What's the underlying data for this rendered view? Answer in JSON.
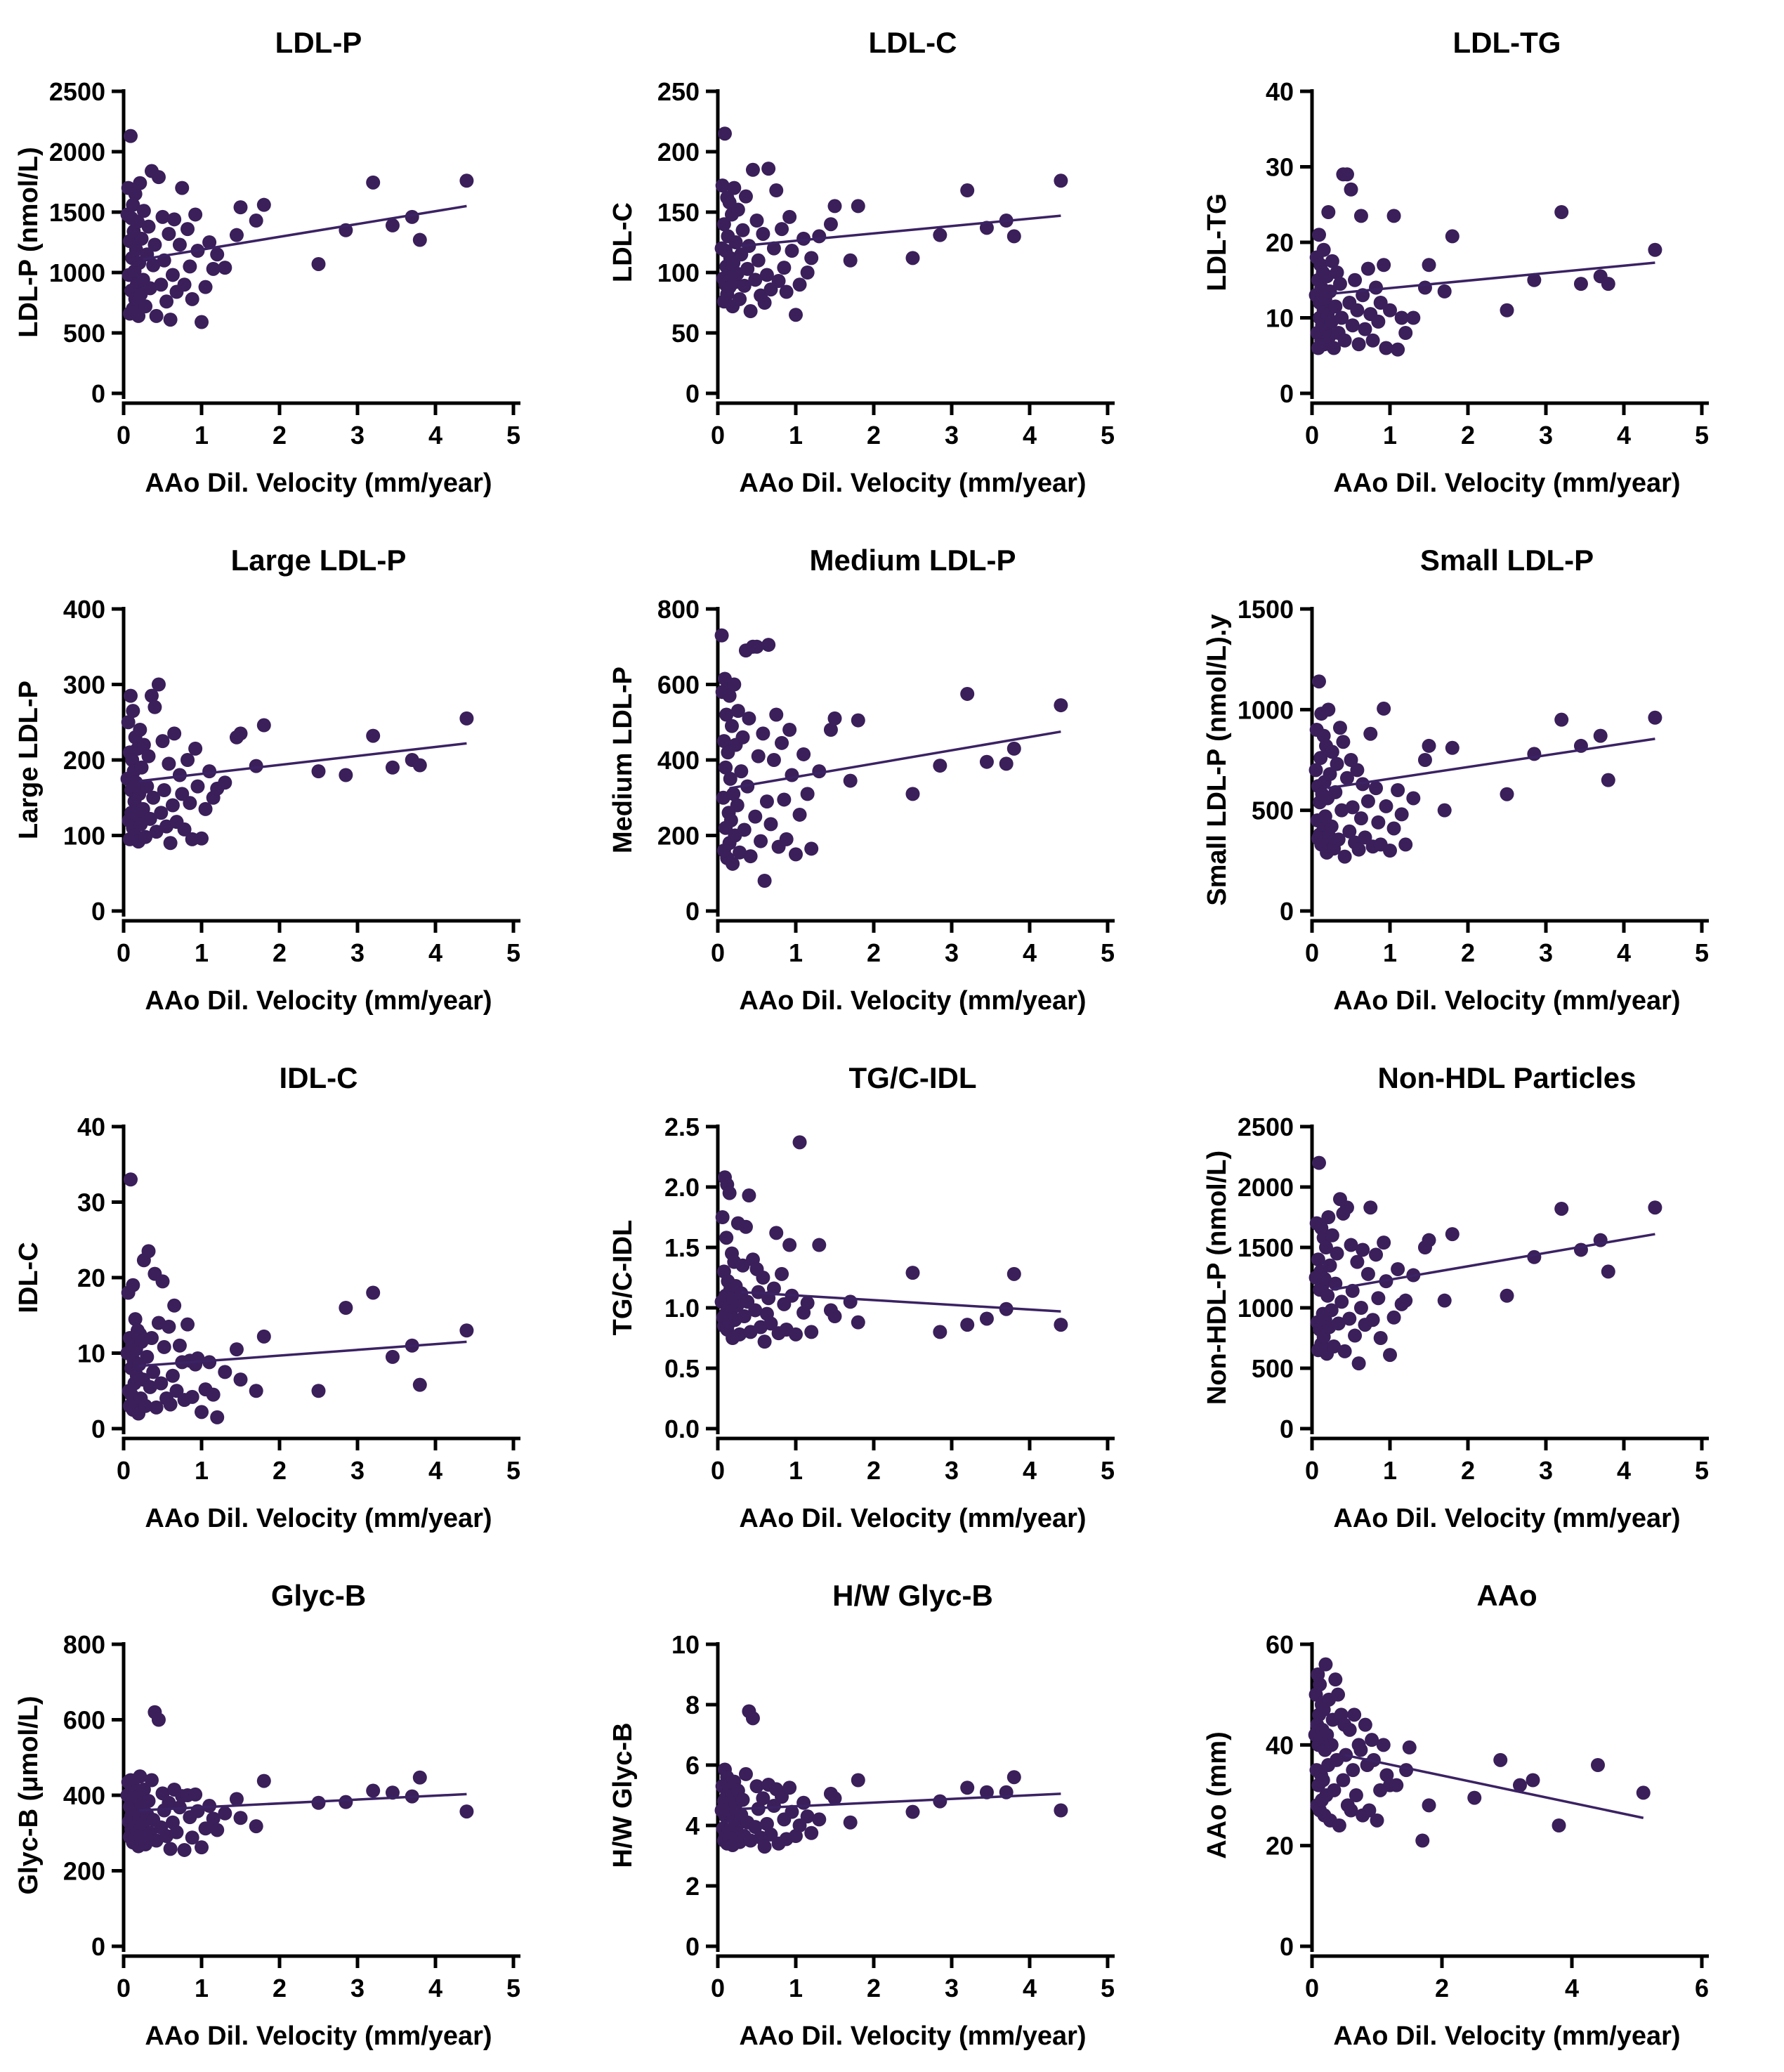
{
  "figure": {
    "background": "#ffffff",
    "dot_color": "#3a1f5a",
    "trend_color": "#3b2263",
    "axis_color": "#000000",
    "xlabel": "AAo Dil. Velocity (mm/year)"
  },
  "x_shared": [
    0.05,
    0.06,
    0.07,
    0.08,
    0.08,
    0.09,
    0.1,
    0.1,
    0.11,
    0.12,
    0.12,
    0.13,
    0.14,
    0.15,
    0.15,
    0.16,
    0.17,
    0.18,
    0.19,
    0.2,
    0.21,
    0.22,
    0.23,
    0.25,
    0.26,
    0.28,
    0.3,
    0.32,
    0.34,
    0.36,
    0.38,
    0.4,
    0.42,
    0.45,
    0.48,
    0.5,
    0.52,
    0.55,
    0.58,
    0.6,
    0.63,
    0.65,
    0.68,
    0.72,
    0.75,
    0.78,
    0.82,
    0.85,
    0.88,
    0.92,
    0.95,
    1.0,
    1.05,
    1.1,
    1.15,
    1.2,
    1.3,
    1.45,
    1.5,
    1.7,
    1.8,
    2.5,
    2.85,
    3.2,
    3.45,
    3.7,
    3.8,
    4.4
  ],
  "chart_data": [
    {
      "type": "scatter",
      "slug": "ldl-p",
      "title": "LDL-P",
      "ylabel": "LDL-P (nmol/L)",
      "xlabel": "AAo Dil. Velocity (mm/year)",
      "xlim": [
        0,
        5
      ],
      "ylim": [
        0,
        2500
      ],
      "xticks": [
        "0",
        "1",
        "2",
        "3",
        "4",
        "5"
      ],
      "yticks": [
        "0",
        "500",
        "1000",
        "1500",
        "2000",
        "2500"
      ],
      "y": [
        1480,
        1700,
        980,
        660,
        1260,
        2130,
        1450,
        850,
        1120,
        1560,
        700,
        1340,
        1010,
        1650,
        780,
        1190,
        900,
        1420,
        640,
        1080,
        1740,
        820,
        1280,
        940,
        1510,
        720,
        1150,
        1380,
        870,
        1840,
        1060,
        1230,
        640,
        1790,
        900,
        1460,
        1100,
        760,
        1320,
        610,
        980,
        1440,
        840,
        1230,
        1700,
        900,
        1360,
        1050,
        780,
        1480,
        1180,
        590,
        880,
        1250,
        1030,
        1150,
        1040,
        1310,
        1540,
        1430,
        1560,
        1070,
        1350,
        1745,
        1390,
        1460,
        1270,
        1760
      ],
      "trend": {
        "x1": 0.25,
        "y1": 1110,
        "x2": 4.4,
        "y2": 1550
      }
    },
    {
      "type": "scatter",
      "slug": "ldl-c",
      "title": "LDL-C",
      "ylabel": "LDL-C",
      "xlabel": "AAo Dil. Velocity (mm/year)",
      "xlim": [
        0,
        5
      ],
      "ylim": [
        0,
        250
      ],
      "xticks": [
        "0",
        "1",
        "2",
        "3",
        "4",
        "5"
      ],
      "yticks": [
        "0",
        "50",
        "100",
        "150",
        "200",
        "250"
      ],
      "y": [
        120,
        172,
        95,
        76,
        140,
        215,
        118,
        90,
        105,
        162,
        82,
        130,
        100,
        158,
        88,
        112,
        96,
        148,
        72,
        108,
        170,
        92,
        125,
        99,
        152,
        78,
        115,
        135,
        89,
        163,
        103,
        122,
        68,
        185,
        94,
        143,
        110,
        81,
        132,
        75,
        98,
        186,
        86,
        120,
        168,
        93,
        136,
        104,
        84,
        146,
        118,
        65,
        90,
        128,
        100,
        112,
        130,
        140,
        155,
        110,
        155,
        112,
        131,
        168,
        137,
        143,
        130,
        176
      ],
      "trend": {
        "x1": 0.3,
        "y1": 122,
        "x2": 4.4,
        "y2": 147
      }
    },
    {
      "type": "scatter",
      "slug": "ldl-tg",
      "title": "LDL-TG",
      "ylabel": "LDL-TG",
      "xlabel": "AAo Dil. Velocity (mm/year)",
      "xlim": [
        0,
        5
      ],
      "ylim": [
        0,
        40
      ],
      "xticks": [
        "0",
        "1",
        "2",
        "3",
        "4",
        "5"
      ],
      "yticks": [
        "0",
        "10",
        "20",
        "30",
        "40"
      ],
      "y": [
        13,
        18,
        8,
        6,
        15,
        21,
        10,
        12,
        17,
        7,
        14,
        9,
        16,
        11,
        19,
        6.5,
        12.5,
        8.5,
        15.5,
        10.5,
        24,
        7.5,
        13.5,
        9.5,
        17.5,
        6,
        11.5,
        16,
        8,
        14.5,
        10,
        29,
        7,
        29,
        12,
        27,
        9,
        15,
        11,
        6.5,
        23.5,
        13,
        8.5,
        16.5,
        10.5,
        7,
        14,
        9.5,
        12,
        17,
        6,
        11,
        23.5,
        5.8,
        10,
        8,
        10,
        14,
        17,
        13.5,
        20.8,
        11,
        15,
        24,
        14.5,
        15.5,
        14.5,
        19
      ],
      "trend": {
        "x1": 0.25,
        "y1": 13.2,
        "x2": 4.4,
        "y2": 17.3
      }
    },
    {
      "type": "scatter",
      "slug": "large-ldl-p",
      "title": "Large LDL-P",
      "ylabel": "Large LDL-P",
      "xlabel": "AAo Dil. Velocity (mm/year)",
      "xlim": [
        0,
        5
      ],
      "ylim": [
        0,
        400
      ],
      "xticks": [
        "0",
        "1",
        "2",
        "3",
        "4",
        "5"
      ],
      "yticks": [
        "0",
        "100",
        "200",
        "300",
        "400"
      ],
      "y": [
        175,
        250,
        120,
        95,
        210,
        285,
        160,
        130,
        200,
        265,
        110,
        185,
        145,
        230,
        100,
        170,
        125,
        215,
        92,
        155,
        240,
        115,
        190,
        135,
        220,
        98,
        165,
        205,
        122,
        285,
        150,
        270,
        105,
        300,
        130,
        225,
        160,
        112,
        195,
        90,
        140,
        235,
        118,
        180,
        155,
        108,
        200,
        143,
        95,
        215,
        165,
        96,
        135,
        185,
        150,
        162,
        170,
        230,
        235,
        192,
        246,
        185,
        180,
        232,
        190,
        200,
        193,
        255
      ],
      "trend": {
        "x1": 0.2,
        "y1": 172,
        "x2": 4.4,
        "y2": 222
      }
    },
    {
      "type": "scatter",
      "slug": "medium-ldl-p",
      "title": "Medium LDL-P",
      "ylabel": "Medium LDL-P",
      "xlabel": "AAo Dil. Velocity (mm/year)",
      "xlim": [
        0,
        5
      ],
      "ylim": [
        0,
        800
      ],
      "xticks": [
        "0",
        "1",
        "2",
        "3",
        "4",
        "5"
      ],
      "yticks": [
        "0",
        "200",
        "400",
        "600",
        "800"
      ],
      "y": [
        730,
        580,
        300,
        160,
        450,
        615,
        380,
        220,
        520,
        590,
        140,
        420,
        260,
        570,
        180,
        350,
        240,
        490,
        125,
        310,
        600,
        200,
        440,
        280,
        530,
        155,
        370,
        460,
        215,
        690,
        330,
        510,
        145,
        700,
        250,
        700,
        410,
        185,
        470,
        80,
        290,
        705,
        230,
        400,
        520,
        170,
        445,
        295,
        190,
        480,
        360,
        150,
        255,
        415,
        310,
        165,
        370,
        480,
        510,
        345,
        505,
        310,
        385,
        575,
        395,
        390,
        430,
        545
      ],
      "trend": {
        "x1": 0.15,
        "y1": 325,
        "x2": 4.4,
        "y2": 475
      }
    },
    {
      "type": "scatter",
      "slug": "small-ldl-p",
      "title": "Small LDL-P",
      "ylabel": "Small LDL-P (nmol/L).y",
      "xlabel": "AAo Dil. Velocity (mm/year)",
      "xlim": [
        0,
        5
      ],
      "ylim": [
        0,
        1500
      ],
      "xticks": [
        "0",
        "1",
        "2",
        "3",
        "4",
        "5"
      ],
      "yticks": [
        "0",
        "500",
        "1000",
        "1500"
      ],
      "y": [
        700,
        900,
        450,
        360,
        620,
        1140,
        540,
        380,
        760,
        980,
        330,
        580,
        430,
        870,
        350,
        640,
        470,
        820,
        290,
        560,
        1000,
        370,
        680,
        420,
        790,
        310,
        590,
        730,
        355,
        910,
        500,
        840,
        270,
        660,
        395,
        750,
        515,
        340,
        700,
        305,
        460,
        630,
        365,
        545,
        880,
        320,
        610,
        440,
        330,
        1005,
        520,
        300,
        410,
        600,
        480,
        330,
        560,
        750,
        820,
        500,
        810,
        580,
        780,
        950,
        820,
        870,
        650,
        960
      ],
      "trend": {
        "x1": 0.2,
        "y1": 610,
        "x2": 4.4,
        "y2": 855
      }
    },
    {
      "type": "scatter",
      "slug": "idl-c",
      "title": "IDL-C",
      "ylabel": "IDL-C",
      "xlabel": "AAo Dil. Velocity (mm/year)",
      "xlim": [
        0,
        5
      ],
      "ylim": [
        0,
        40
      ],
      "xticks": [
        "0",
        "1",
        "2",
        "3",
        "4",
        "5"
      ],
      "yticks": [
        "0",
        "10",
        "20",
        "30",
        "40"
      ],
      "y": [
        10,
        18,
        5,
        3,
        12,
        33,
        8,
        4.5,
        11,
        19,
        2.5,
        9,
        6,
        14.5,
        3.5,
        10.5,
        7,
        13,
        2,
        8.5,
        12.5,
        4,
        11.5,
        6.5,
        22.3,
        3,
        9.5,
        23.5,
        5.5,
        12,
        7.5,
        20.5,
        2.8,
        14,
        6,
        19.5,
        10.8,
        4,
        13.5,
        3.2,
        7,
        16.3,
        5,
        11,
        8.8,
        3.8,
        13.8,
        9,
        4.2,
        8.5,
        9.3,
        2.2,
        5.2,
        8.8,
        4.5,
        1.5,
        7.5,
        10.5,
        6.5,
        5,
        12.2,
        5,
        16,
        18,
        9.5,
        11,
        5.8,
        13
      ],
      "trend": {
        "x1": 0.2,
        "y1": 8.3,
        "x2": 4.4,
        "y2": 11.5
      }
    },
    {
      "type": "scatter",
      "slug": "tg-c-idl",
      "title": "TG/C-IDL",
      "ylabel": "TG/C-IDL",
      "xlabel": "AAo Dil. Velocity (mm/year)",
      "xlim": [
        0,
        5
      ],
      "ylim": [
        0,
        2.5
      ],
      "xticks": [
        "0",
        "1",
        "2",
        "3",
        "4",
        "5"
      ],
      "yticks": [
        "0.0",
        "0.5",
        "1.0",
        "1.5",
        "2.0",
        "2.5"
      ],
      "y": [
        1.05,
        1.75,
        0.92,
        0.85,
        1.3,
        2.08,
        1.1,
        0.95,
        1.58,
        2.02,
        0.82,
        1.22,
        1.0,
        1.95,
        0.88,
        1.15,
        0.97,
        1.45,
        0.75,
        1.08,
        1.38,
        0.9,
        1.18,
        1.02,
        1.7,
        0.78,
        1.12,
        1.35,
        0.93,
        1.67,
        1.05,
        1.93,
        0.8,
        1.4,
        0.98,
        1.32,
        1.13,
        0.84,
        1.25,
        0.72,
        0.95,
        1.08,
        0.87,
        1.16,
        1.62,
        0.79,
        1.28,
        1.03,
        0.82,
        1.52,
        1.1,
        0.78,
        2.37,
        0.96,
        1.04,
        0.8,
        1.52,
        0.98,
        0.93,
        1.05,
        0.88,
        1.29,
        0.8,
        0.86,
        0.91,
        0.99,
        1.28,
        0.86
      ],
      "trend": {
        "x1": 0.3,
        "y1": 1.13,
        "x2": 4.4,
        "y2": 0.97
      }
    },
    {
      "type": "scatter",
      "slug": "non-hdl-particles",
      "title": "Non-HDL Particles",
      "ylabel": "Non-HDL-P (nmol/L)",
      "xlabel": "AAo Dil. Velocity (mm/year)",
      "xlim": [
        0,
        5
      ],
      "ylim": [
        0,
        2500
      ],
      "xticks": [
        "0",
        "1",
        "2",
        "3",
        "4",
        "5"
      ],
      "yticks": [
        "0",
        "500",
        "1000",
        "1500",
        "2000",
        "2500"
      ],
      "y": [
        1250,
        1700,
        880,
        650,
        1400,
        2200,
        1150,
        820,
        1300,
        1660,
        700,
        1180,
        950,
        1580,
        760,
        1240,
        900,
        1500,
        620,
        1100,
        1750,
        840,
        1350,
        980,
        1600,
        680,
        1200,
        1450,
        870,
        1900,
        1050,
        1780,
        640,
        1830,
        910,
        1520,
        1140,
        770,
        1380,
        540,
        1000,
        1480,
        860,
        1280,
        1830,
        900,
        1440,
        1080,
        750,
        1540,
        1220,
        610,
        920,
        1320,
        1030,
        1060,
        1270,
        1500,
        1560,
        1060,
        1610,
        1100,
        1420,
        1820,
        1480,
        1560,
        1300,
        1830
      ],
      "trend": {
        "x1": 0.25,
        "y1": 1150,
        "x2": 4.4,
        "y2": 1610
      }
    },
    {
      "type": "scatter",
      "slug": "glyc-b",
      "title": "Glyc-B",
      "ylabel": "Glyc-B (μmol/L)",
      "xlabel": "AAo Dil. Velocity (mm/year)",
      "xlim": [
        0,
        5
      ],
      "ylim": [
        0,
        800
      ],
      "xticks": [
        "0",
        "1",
        "2",
        "3",
        "4",
        "5"
      ],
      "yticks": [
        "0",
        "200",
        "400",
        "600",
        "800"
      ],
      "y": [
        400,
        435,
        330,
        290,
        370,
        440,
        345,
        310,
        390,
        425,
        275,
        355,
        320,
        410,
        285,
        365,
        305,
        395,
        265,
        340,
        450,
        295,
        375,
        325,
        415,
        270,
        350,
        385,
        300,
        440,
        335,
        620,
        280,
        600,
        315,
        405,
        360,
        292,
        380,
        258,
        328,
        415,
        302,
        368,
        398,
        255,
        400,
        342,
        288,
        402,
        358,
        262,
        312,
        372,
        338,
        308,
        352,
        390,
        340,
        318,
        438,
        380,
        382,
        412,
        407,
        397,
        447,
        357
      ],
      "trend": {
        "x1": 0.2,
        "y1": 360,
        "x2": 4.4,
        "y2": 403
      }
    },
    {
      "type": "scatter",
      "slug": "hw-glyc-b",
      "title": "H/W Glyc-B",
      "ylabel": "H/W Glyc-B",
      "xlabel": "AAo Dil. Velocity (mm/year)",
      "xlim": [
        0,
        5
      ],
      "ylim": [
        0,
        10
      ],
      "xticks": [
        "0",
        "1",
        "2",
        "3",
        "4",
        "5"
      ],
      "yticks": [
        "0",
        "2",
        "4",
        "6",
        "8",
        "10"
      ],
      "y": [
        4.5,
        5.3,
        3.9,
        3.5,
        4.8,
        5.85,
        4.3,
        3.7,
        4.95,
        5.6,
        3.4,
        4.4,
        3.85,
        5.2,
        3.55,
        4.6,
        3.75,
        5.0,
        3.35,
        4.25,
        5.45,
        3.6,
        4.7,
        4.0,
        5.15,
        3.45,
        4.35,
        4.85,
        3.65,
        5.7,
        4.1,
        7.78,
        3.5,
        7.55,
        3.95,
        5.3,
        4.55,
        3.6,
        4.9,
        3.3,
        4.05,
        5.35,
        3.7,
        4.65,
        5.2,
        3.4,
        4.95,
        4.2,
        3.55,
        5.25,
        4.45,
        3.65,
        4.0,
        4.75,
        4.3,
        3.75,
        4.2,
        5.05,
        4.9,
        4.1,
        5.5,
        4.45,
        4.8,
        5.25,
        5.1,
        5.1,
        5.6,
        4.5
      ],
      "trend": {
        "x1": 0.3,
        "y1": 4.55,
        "x2": 4.4,
        "y2": 5.05
      }
    },
    {
      "type": "scatter",
      "slug": "aao",
      "title": "AAo",
      "ylabel": "AAo (mm)",
      "xlabel": "AAo Dil. Velocity (mm/year)",
      "xlim": [
        0,
        6
      ],
      "ylim": [
        0,
        60
      ],
      "xticks": [
        "0",
        "2",
        "4",
        "6"
      ],
      "yticks": [
        "0",
        "20",
        "40",
        "60"
      ],
      "x": [
        0.05,
        0.06,
        0.07,
        0.08,
        0.08,
        0.09,
        0.1,
        0.1,
        0.11,
        0.12,
        0.12,
        0.13,
        0.14,
        0.15,
        0.15,
        0.16,
        0.17,
        0.18,
        0.19,
        0.2,
        0.21,
        0.22,
        0.23,
        0.25,
        0.26,
        0.28,
        0.3,
        0.32,
        0.34,
        0.36,
        0.38,
        0.4,
        0.42,
        0.45,
        0.48,
        0.5,
        0.52,
        0.55,
        0.58,
        0.6,
        0.63,
        0.65,
        0.68,
        0.72,
        0.75,
        0.78,
        0.82,
        0.85,
        0.88,
        0.92,
        0.95,
        1.0,
        1.05,
        1.1,
        1.15,
        1.2,
        1.3,
        1.45,
        1.5,
        1.7,
        1.8,
        2.5,
        2.9,
        3.2,
        3.4,
        3.8,
        4.4,
        5.1
      ],
      "y": [
        42,
        50,
        35,
        28,
        44,
        54,
        40,
        32,
        46,
        52,
        27,
        41,
        34,
        48,
        29,
        43,
        33,
        47,
        26,
        39,
        56,
        30,
        42,
        36,
        49,
        25,
        40,
        45,
        31,
        53,
        37,
        50,
        24,
        46,
        33,
        44,
        38,
        28,
        43,
        27,
        35,
        46,
        30,
        40,
        39,
        26,
        44,
        36,
        27,
        41,
        37,
        25,
        31,
        40,
        34,
        32,
        32,
        35,
        39.5,
        21,
        28,
        29.5,
        37,
        32,
        33,
        24,
        36,
        30.5
      ],
      "trend": {
        "x1": 0.5,
        "y1": 38,
        "x2": 5.1,
        "y2": 25.5
      }
    }
  ]
}
